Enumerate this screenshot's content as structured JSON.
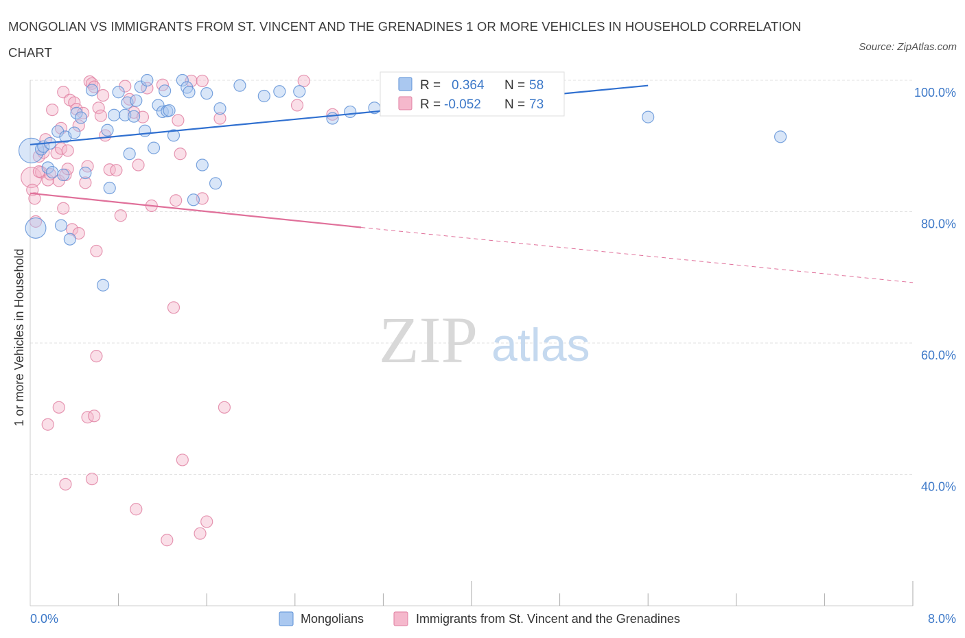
{
  "header": {
    "title": "MONGOLIAN VS IMMIGRANTS FROM ST. VINCENT AND THE GRENADINES 1 OR MORE VEHICLES IN HOUSEHOLD CORRELATION CHART",
    "source_prefix": "Source: ",
    "source_site": "ZipAtlas.com"
  },
  "watermark": {
    "zip": "ZIP",
    "atlas": "atlas"
  },
  "colors": {
    "blue_fill": "#aac8f0",
    "blue_stroke": "#5b8fd6",
    "blue_line": "#3070d0",
    "pink_fill": "#f5b8cc",
    "pink_stroke": "#e07ea0",
    "pink_line": "#e0709a",
    "grid": "#e2e2e2",
    "axis_text": "#3c78c8"
  },
  "stats": {
    "row1": {
      "r_label": "R =",
      "r_value": "0.364",
      "n_label": "N =",
      "n_value": "58"
    },
    "row2": {
      "r_label": "R =",
      "r_value": "-0.052",
      "n_label": "N =",
      "n_value": "73"
    }
  },
  "legend": {
    "mongolians": "Mongolians",
    "svg_immigrants": "Immigrants from St. Vincent and the Grenadines"
  },
  "chart_data": {
    "type": "scatter",
    "xlabel": "",
    "ylabel": "1 or more Vehicles in Household",
    "xlim": [
      0,
      8
    ],
    "ylim": [
      20,
      100
    ],
    "x_tick_labels": [
      "0.0%",
      "8.0%"
    ],
    "y_ticks": [
      40,
      60,
      80,
      100
    ],
    "y_tick_labels": [
      "40.0%",
      "60.0%",
      "80.0%",
      "100.0%"
    ],
    "grid": true,
    "legend_position": "bottom-center",
    "series": [
      {
        "name": "Mongolians",
        "trend": {
          "x0": 0.0,
          "y0": 90.2,
          "x1": 5.6,
          "y1": 99.2,
          "dashed_to": null
        },
        "points": [
          [
            0.01,
            89.3,
            22
          ],
          [
            0.05,
            77.5,
            18
          ],
          [
            0.1,
            89.5,
            10
          ],
          [
            0.12,
            89.9,
            10
          ],
          [
            0.16,
            86.7,
            10
          ],
          [
            0.18,
            90.4,
            10
          ],
          [
            0.2,
            86.0,
            10
          ],
          [
            0.25,
            92.2,
            10
          ],
          [
            0.28,
            77.9,
            10
          ],
          [
            0.3,
            85.6,
            10
          ],
          [
            0.32,
            91.4,
            10
          ],
          [
            0.36,
            75.8,
            10
          ],
          [
            0.4,
            92.0,
            10
          ],
          [
            0.42,
            95.0,
            10
          ],
          [
            0.46,
            94.3,
            10
          ],
          [
            0.5,
            85.9,
            10
          ],
          [
            0.56,
            98.5,
            10
          ],
          [
            0.66,
            68.8,
            10
          ],
          [
            0.7,
            92.4,
            10
          ],
          [
            0.72,
            83.6,
            10
          ],
          [
            0.76,
            94.7,
            10
          ],
          [
            0.8,
            98.2,
            10
          ],
          [
            0.86,
            94.7,
            10
          ],
          [
            0.88,
            96.6,
            10
          ],
          [
            0.9,
            88.8,
            10
          ],
          [
            0.94,
            94.5,
            10
          ],
          [
            0.96,
            96.9,
            10
          ],
          [
            1.0,
            99.0,
            10
          ],
          [
            1.04,
            92.3,
            10
          ],
          [
            1.06,
            100.0,
            10
          ],
          [
            1.12,
            89.7,
            10
          ],
          [
            1.16,
            96.2,
            10
          ],
          [
            1.2,
            95.2,
            10
          ],
          [
            1.22,
            98.4,
            10
          ],
          [
            1.24,
            95.3,
            10
          ],
          [
            1.26,
            95.4,
            10
          ],
          [
            1.3,
            91.6,
            10
          ],
          [
            1.38,
            100.0,
            10
          ],
          [
            1.42,
            98.9,
            10
          ],
          [
            1.44,
            98.2,
            10
          ],
          [
            1.48,
            81.8,
            10
          ],
          [
            1.56,
            87.1,
            10
          ],
          [
            1.6,
            98.0,
            10
          ],
          [
            1.68,
            84.3,
            10
          ],
          [
            1.72,
            95.7,
            10
          ],
          [
            1.9,
            99.2,
            10
          ],
          [
            2.12,
            97.6,
            10
          ],
          [
            2.26,
            98.3,
            10
          ],
          [
            2.44,
            98.3,
            10
          ],
          [
            2.74,
            94.2,
            10
          ],
          [
            2.9,
            95.2,
            10
          ],
          [
            3.12,
            95.8,
            10
          ],
          [
            3.5,
            99.5,
            10
          ],
          [
            3.56,
            99.7,
            10
          ],
          [
            3.58,
            99.8,
            10
          ],
          [
            3.6,
            99.9,
            10
          ],
          [
            5.6,
            94.4,
            10
          ],
          [
            6.8,
            91.4,
            10
          ]
        ]
      },
      {
        "name": "Immigrants from St. Vincent and the Grenadines",
        "trend": {
          "x0": 0.0,
          "y0": 82.8,
          "x1": 3.0,
          "y1": 77.6,
          "dashed_to": [
            8.0,
            69.2
          ]
        },
        "points": [
          [
            0.01,
            85.2,
            18
          ],
          [
            0.02,
            83.3,
            10
          ],
          [
            0.04,
            82.0,
            10
          ],
          [
            0.05,
            78.5,
            10
          ],
          [
            0.08,
            88.4,
            10
          ],
          [
            0.1,
            86.0,
            10
          ],
          [
            0.12,
            89.0,
            10
          ],
          [
            0.14,
            91.0,
            10
          ],
          [
            0.16,
            84.8,
            10
          ],
          [
            0.18,
            85.7,
            10
          ],
          [
            0.2,
            95.5,
            10
          ],
          [
            0.24,
            88.9,
            10
          ],
          [
            0.26,
            84.7,
            10
          ],
          [
            0.28,
            92.7,
            10
          ],
          [
            0.28,
            89.6,
            10
          ],
          [
            0.3,
            98.2,
            10
          ],
          [
            0.3,
            80.5,
            10
          ],
          [
            0.32,
            85.6,
            10
          ],
          [
            0.34,
            89.3,
            10
          ],
          [
            0.36,
            97.0,
            10
          ],
          [
            0.38,
            77.3,
            10
          ],
          [
            0.4,
            96.6,
            10
          ],
          [
            0.42,
            95.6,
            10
          ],
          [
            0.44,
            93.1,
            10
          ],
          [
            0.44,
            76.7,
            10
          ],
          [
            0.48,
            95.0,
            10
          ],
          [
            0.5,
            84.4,
            10
          ],
          [
            0.52,
            86.9,
            10
          ],
          [
            0.54,
            99.8,
            10
          ],
          [
            0.56,
            99.5,
            10
          ],
          [
            0.58,
            99.0,
            10
          ],
          [
            0.62,
            95.8,
            10
          ],
          [
            0.64,
            94.6,
            10
          ],
          [
            0.66,
            97.7,
            10
          ],
          [
            0.68,
            91.6,
            10
          ],
          [
            0.72,
            86.4,
            10
          ],
          [
            0.78,
            86.3,
            10
          ],
          [
            0.82,
            79.4,
            10
          ],
          [
            0.86,
            99.1,
            10
          ],
          [
            0.9,
            97.1,
            10
          ],
          [
            0.94,
            95.1,
            10
          ],
          [
            0.98,
            87.1,
            10
          ],
          [
            1.02,
            94.4,
            10
          ],
          [
            1.06,
            98.8,
            10
          ],
          [
            1.1,
            80.9,
            10
          ],
          [
            1.2,
            99.3,
            10
          ],
          [
            1.32,
            81.7,
            10
          ],
          [
            1.34,
            93.9,
            10
          ],
          [
            1.36,
            88.8,
            10
          ],
          [
            1.46,
            99.9,
            10
          ],
          [
            1.56,
            82.0,
            10
          ],
          [
            1.56,
            99.9,
            10
          ],
          [
            1.72,
            94.2,
            10
          ],
          [
            2.42,
            96.2,
            10
          ],
          [
            2.48,
            99.9,
            10
          ],
          [
            2.74,
            94.8,
            10
          ],
          [
            0.6,
            74.0,
            10
          ],
          [
            1.3,
            65.4,
            10
          ],
          [
            0.6,
            58.0,
            10
          ],
          [
            0.26,
            50.2,
            10
          ],
          [
            0.16,
            47.6,
            10
          ],
          [
            0.52,
            48.7,
            10
          ],
          [
            0.58,
            48.9,
            10
          ],
          [
            1.76,
            50.2,
            10
          ],
          [
            1.38,
            42.2,
            10
          ],
          [
            0.32,
            38.5,
            10
          ],
          [
            0.56,
            39.3,
            10
          ],
          [
            0.96,
            34.7,
            10
          ],
          [
            1.54,
            31.0,
            10
          ],
          [
            1.6,
            32.8,
            10
          ],
          [
            1.24,
            30.0,
            10
          ],
          [
            0.08,
            86.1,
            10
          ],
          [
            0.34,
            86.5,
            10
          ]
        ]
      }
    ]
  }
}
